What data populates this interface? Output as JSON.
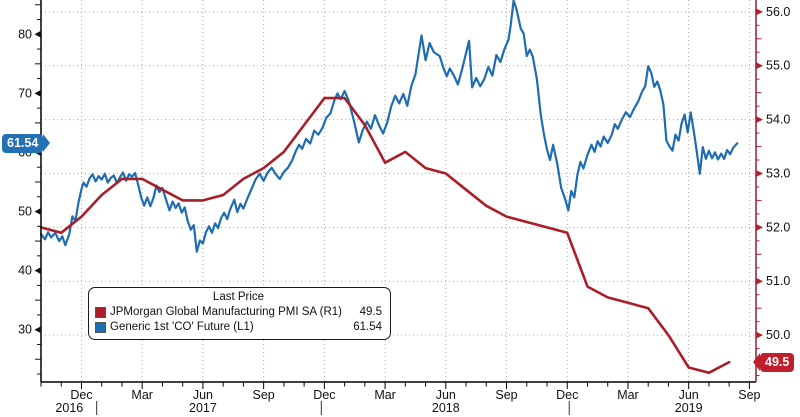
{
  "chart_data": {
    "type": "line",
    "title": "",
    "legend_position": "bottom-left-inside",
    "grid": {
      "style": "dotted",
      "color": "#a8a8a8",
      "horizontal_follows": "right_axis",
      "vertical_at_quarters": true
    },
    "x_axis": {
      "unit": "months_from_Oct_2016",
      "quarter_ticks": [
        {
          "t": 2,
          "label": "Dec"
        },
        {
          "t": 5,
          "label": "Mar"
        },
        {
          "t": 8,
          "label": "Jun"
        },
        {
          "t": 11,
          "label": "Sep"
        },
        {
          "t": 14,
          "label": "Dec"
        },
        {
          "t": 17,
          "label": "Mar"
        },
        {
          "t": 20,
          "label": "Jun"
        },
        {
          "t": 23,
          "label": "Sep"
        },
        {
          "t": 26,
          "label": "Dec"
        },
        {
          "t": 29,
          "label": "Mar"
        },
        {
          "t": 32,
          "label": "Jun"
        },
        {
          "t": 35,
          "label": "Sep"
        }
      ],
      "year_labels": [
        {
          "t": 1.4,
          "label": "2016"
        },
        {
          "t": 8,
          "label": "2017"
        },
        {
          "t": 20,
          "label": "2018"
        },
        {
          "t": 32,
          "label": "2019"
        }
      ],
      "year_separators_t": [
        2.75,
        13.85,
        26.1
      ]
    },
    "left_axis": {
      "labels": [
        "80",
        "70",
        "60",
        "50",
        "40",
        "30"
      ],
      "label_values": [
        80,
        70,
        60,
        50,
        40,
        30
      ],
      "top_value": 85.8,
      "bottom_value": 21.15,
      "minor_step": 2.5,
      "text_color": "#111111",
      "arrow_color": "#111111",
      "spine_color": "#000000"
    },
    "right_axis": {
      "labels": [
        "56.0",
        "55.0",
        "54.0",
        "53.0",
        "52.0",
        "51.0",
        "50.0"
      ],
      "label_values": [
        56,
        55,
        54,
        53,
        52,
        51,
        50
      ],
      "top_value": 56.22,
      "bottom_value": 49.13,
      "minor_step": 0.25,
      "text_color": "#111111",
      "arrow_color": "#b02030",
      "spine_color": "#8f1f2b"
    },
    "series": [
      {
        "name": "JPMorgan Global Manufacturing PMI SA",
        "axis": "R1",
        "last_value": 49.5,
        "color": "#a81e29",
        "points": [
          [
            0,
            52.0
          ],
          [
            1,
            51.9
          ],
          [
            2,
            52.2
          ],
          [
            3,
            52.6
          ],
          [
            4,
            52.9
          ],
          [
            5,
            52.9
          ],
          [
            6,
            52.7
          ],
          [
            7,
            52.5
          ],
          [
            8,
            52.5
          ],
          [
            9,
            52.6
          ],
          [
            10,
            52.9
          ],
          [
            11,
            53.1
          ],
          [
            12,
            53.4
          ],
          [
            13,
            53.9
          ],
          [
            14,
            54.4
          ],
          [
            15,
            54.4
          ],
          [
            16,
            53.9
          ],
          [
            17,
            53.2
          ],
          [
            18,
            53.4
          ],
          [
            19,
            53.1
          ],
          [
            20,
            53.0
          ],
          [
            21,
            52.7
          ],
          [
            22,
            52.4
          ],
          [
            23,
            52.2
          ],
          [
            24,
            52.1
          ],
          [
            25,
            52.0
          ],
          [
            26,
            51.9
          ],
          [
            27,
            50.9
          ],
          [
            28,
            50.7
          ],
          [
            29,
            50.6
          ],
          [
            30,
            50.5
          ],
          [
            31,
            50.0
          ],
          [
            32,
            49.4
          ],
          [
            33,
            49.3
          ],
          [
            34,
            49.5
          ]
        ]
      },
      {
        "name": "Generic 1st 'CO' Future",
        "axis": "L1",
        "last_value": 61.54,
        "color": "#1f6cb0",
        "points": [
          [
            0.0,
            46.2
          ],
          [
            0.2,
            45.3
          ],
          [
            0.35,
            46.5
          ],
          [
            0.5,
            45.6
          ],
          [
            0.7,
            46.4
          ],
          [
            0.9,
            45.0
          ],
          [
            1.05,
            45.8
          ],
          [
            1.2,
            44.3
          ],
          [
            1.4,
            46.2
          ],
          [
            1.55,
            49.2
          ],
          [
            1.7,
            48.4
          ],
          [
            1.85,
            51.5
          ],
          [
            2.0,
            53.8
          ],
          [
            2.1,
            54.9
          ],
          [
            2.25,
            54.2
          ],
          [
            2.4,
            55.6
          ],
          [
            2.55,
            56.3
          ],
          [
            2.7,
            55.1
          ],
          [
            2.85,
            56.0
          ],
          [
            3.0,
            55.4
          ],
          [
            3.15,
            56.4
          ],
          [
            3.3,
            54.9
          ],
          [
            3.45,
            55.7
          ],
          [
            3.6,
            56.1
          ],
          [
            3.75,
            54.8
          ],
          [
            3.9,
            55.8
          ],
          [
            4.05,
            56.6
          ],
          [
            4.2,
            55.2
          ],
          [
            4.35,
            56.3
          ],
          [
            4.5,
            55.9
          ],
          [
            4.65,
            56.5
          ],
          [
            4.8,
            54.5
          ],
          [
            4.95,
            52.4
          ],
          [
            5.1,
            51.0
          ],
          [
            5.25,
            52.4
          ],
          [
            5.4,
            50.9
          ],
          [
            5.55,
            52.2
          ],
          [
            5.7,
            54.4
          ],
          [
            5.85,
            53.3
          ],
          [
            6.0,
            54.0
          ],
          [
            6.15,
            52.3
          ],
          [
            6.35,
            50.2
          ],
          [
            6.5,
            51.7
          ],
          [
            6.65,
            50.6
          ],
          [
            6.8,
            51.4
          ],
          [
            6.95,
            49.8
          ],
          [
            7.1,
            50.7
          ],
          [
            7.25,
            48.4
          ],
          [
            7.4,
            46.9
          ],
          [
            7.55,
            47.7
          ],
          [
            7.7,
            43.2
          ],
          [
            7.85,
            45.1
          ],
          [
            8.0,
            44.6
          ],
          [
            8.15,
            46.5
          ],
          [
            8.3,
            47.5
          ],
          [
            8.45,
            46.4
          ],
          [
            8.6,
            48.0
          ],
          [
            8.75,
            47.2
          ],
          [
            8.9,
            48.9
          ],
          [
            9.05,
            49.8
          ],
          [
            9.2,
            48.7
          ],
          [
            9.35,
            50.4
          ],
          [
            9.55,
            52.0
          ],
          [
            9.7,
            49.9
          ],
          [
            9.85,
            51.3
          ],
          [
            10.0,
            50.5
          ],
          [
            10.2,
            52.2
          ],
          [
            10.4,
            53.8
          ],
          [
            10.6,
            55.4
          ],
          [
            10.8,
            56.4
          ],
          [
            11.0,
            55.2
          ],
          [
            11.2,
            56.6
          ],
          [
            11.4,
            57.4
          ],
          [
            11.6,
            56.3
          ],
          [
            11.8,
            55.5
          ],
          [
            12.0,
            56.7
          ],
          [
            12.2,
            57.4
          ],
          [
            12.4,
            58.6
          ],
          [
            12.6,
            60.3
          ],
          [
            12.75,
            61.3
          ],
          [
            12.9,
            60.6
          ],
          [
            13.1,
            62.3
          ],
          [
            13.3,
            61.5
          ],
          [
            13.5,
            63.7
          ],
          [
            13.7,
            63.0
          ],
          [
            13.9,
            64.1
          ],
          [
            14.1,
            65.9
          ],
          [
            14.3,
            66.6
          ],
          [
            14.5,
            68.9
          ],
          [
            14.65,
            70.0
          ],
          [
            14.8,
            69.0
          ],
          [
            15.0,
            70.4
          ],
          [
            15.2,
            68.8
          ],
          [
            15.45,
            65.5
          ],
          [
            15.7,
            61.7
          ],
          [
            15.9,
            63.8
          ],
          [
            16.1,
            65.2
          ],
          [
            16.3,
            64.0
          ],
          [
            16.5,
            66.3
          ],
          [
            16.7,
            64.6
          ],
          [
            16.9,
            63.2
          ],
          [
            17.1,
            65.0
          ],
          [
            17.3,
            67.8
          ],
          [
            17.5,
            69.6
          ],
          [
            17.7,
            68.3
          ],
          [
            17.9,
            69.9
          ],
          [
            18.1,
            67.9
          ],
          [
            18.3,
            71.3
          ],
          [
            18.5,
            73.2
          ],
          [
            18.8,
            79.8
          ],
          [
            19.0,
            75.6
          ],
          [
            19.2,
            78.5
          ],
          [
            19.4,
            77.0
          ],
          [
            19.7,
            76.3
          ],
          [
            19.9,
            74.1
          ],
          [
            20.05,
            72.9
          ],
          [
            20.2,
            74.2
          ],
          [
            20.4,
            73.0
          ],
          [
            20.6,
            71.5
          ],
          [
            20.8,
            74.0
          ],
          [
            21.0,
            76.8
          ],
          [
            21.15,
            78.9
          ],
          [
            21.3,
            71.0
          ],
          [
            21.5,
            72.6
          ],
          [
            21.7,
            71.2
          ],
          [
            21.9,
            72.4
          ],
          [
            22.1,
            74.5
          ],
          [
            22.3,
            73.0
          ],
          [
            22.5,
            76.5
          ],
          [
            22.7,
            75.3
          ],
          [
            22.9,
            77.5
          ],
          [
            23.1,
            79.1
          ],
          [
            23.2,
            81.4
          ],
          [
            23.35,
            85.7
          ],
          [
            23.5,
            84.2
          ],
          [
            23.7,
            81.0
          ],
          [
            23.85,
            80.1
          ],
          [
            24.0,
            76.3
          ],
          [
            24.15,
            77.4
          ],
          [
            24.3,
            76.2
          ],
          [
            24.5,
            72.4
          ],
          [
            24.7,
            66.2
          ],
          [
            24.85,
            63.0
          ],
          [
            25.0,
            60.5
          ],
          [
            25.15,
            58.7
          ],
          [
            25.3,
            61.3
          ],
          [
            25.5,
            58.2
          ],
          [
            25.7,
            54.0
          ],
          [
            25.9,
            52.1
          ],
          [
            26.05,
            50.2
          ],
          [
            26.2,
            53.5
          ],
          [
            26.35,
            52.4
          ],
          [
            26.5,
            56.2
          ],
          [
            26.65,
            58.4
          ],
          [
            26.8,
            57.3
          ],
          [
            27.0,
            59.6
          ],
          [
            27.2,
            61.3
          ],
          [
            27.35,
            60.1
          ],
          [
            27.5,
            61.9
          ],
          [
            27.65,
            61.0
          ],
          [
            27.8,
            62.7
          ],
          [
            28.0,
            61.6
          ],
          [
            28.2,
            63.0
          ],
          [
            28.35,
            64.8
          ],
          [
            28.5,
            64.0
          ],
          [
            28.7,
            65.6
          ],
          [
            28.9,
            66.8
          ],
          [
            29.1,
            66.0
          ],
          [
            29.3,
            67.4
          ],
          [
            29.5,
            68.6
          ],
          [
            29.7,
            70.3
          ],
          [
            29.85,
            71.2
          ],
          [
            30.0,
            74.6
          ],
          [
            30.15,
            73.5
          ],
          [
            30.3,
            71.1
          ],
          [
            30.45,
            72.0
          ],
          [
            30.6,
            70.5
          ],
          [
            30.75,
            68.1
          ],
          [
            30.9,
            62.0
          ],
          [
            31.05,
            61.0
          ],
          [
            31.2,
            60.3
          ],
          [
            31.35,
            63.0
          ],
          [
            31.5,
            62.0
          ],
          [
            31.65,
            64.9
          ],
          [
            31.8,
            66.4
          ],
          [
            31.95,
            63.4
          ],
          [
            32.1,
            66.8
          ],
          [
            32.25,
            63.7
          ],
          [
            32.4,
            60.1
          ],
          [
            32.55,
            56.4
          ],
          [
            32.7,
            60.9
          ],
          [
            32.85,
            58.9
          ],
          [
            33.0,
            60.3
          ],
          [
            33.15,
            59.0
          ],
          [
            33.3,
            60.0
          ],
          [
            33.45,
            58.8
          ],
          [
            33.6,
            59.8
          ],
          [
            33.75,
            58.9
          ],
          [
            33.9,
            60.4
          ],
          [
            34.05,
            59.7
          ],
          [
            34.2,
            60.8
          ],
          [
            34.4,
            61.54
          ]
        ]
      }
    ]
  },
  "legend": {
    "title": "Last Price",
    "items": [
      {
        "swatch_color": "#a81e29",
        "label": "JPMorgan Global Manufacturing PMI SA  (R1)",
        "value": "49.5"
      },
      {
        "swatch_color": "#1f6cb0",
        "label": "Generic 1st 'CO' Future  (L1)",
        "value": "61.54"
      }
    ]
  },
  "badges": [
    {
      "text": "61.54",
      "axis": "left",
      "value": 61.54,
      "color": "#2470b4"
    },
    {
      "text": "49.5",
      "axis": "right",
      "value": 49.5,
      "color": "#c0202e"
    }
  ]
}
